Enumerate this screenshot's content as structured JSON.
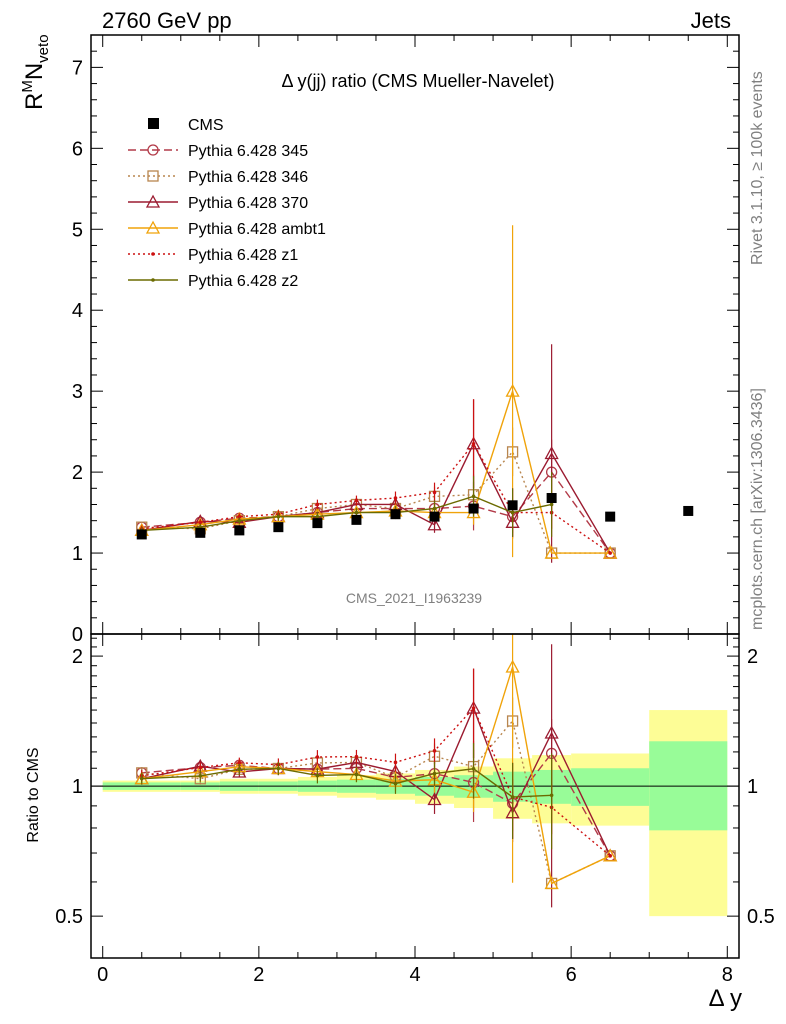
{
  "header": {
    "left": "2760 GeV pp",
    "right": "Jets"
  },
  "side_labels": {
    "rivet": "Rivet 3.1.10, ≥ 100k events",
    "mcplots": "mcplots.cern.ch [arXiv:1306.3436]"
  },
  "chart_data": {
    "type": "scatter",
    "title": "Δ y(jj) ratio (CMS Mueller-Navelet)",
    "analysis_label": "CMS_2021_I1963239",
    "xlabel": "Δ y",
    "ylabel_main_base": "R",
    "ylabel_main_sup": "M",
    "ylabel_main_N": "N",
    "ylabel_main_sub": "veto",
    "ylabel_ratio": "Ratio to CMS",
    "xlim": [
      -0.15,
      8.15
    ],
    "ylim_main": [
      0,
      7.4
    ],
    "ylim_ratio": [
      0.4,
      2.25
    ],
    "x_ticks": [
      "0",
      "2",
      "4",
      "6",
      "8"
    ],
    "y_ticks_main": [
      "0",
      "1",
      "2",
      "3",
      "4",
      "5",
      "6",
      "7"
    ],
    "y_ticks_ratio": [
      "0.5",
      "1",
      "2"
    ],
    "data": {
      "name": "CMS",
      "x": [
        0.5,
        1.25,
        1.75,
        2.25,
        2.75,
        3.25,
        3.75,
        4.25,
        4.75,
        5.25,
        5.75,
        6.5,
        7.5
      ],
      "y": [
        1.23,
        1.25,
        1.28,
        1.32,
        1.37,
        1.41,
        1.48,
        1.45,
        1.55,
        1.59,
        1.68,
        1.45,
        1.52
      ]
    },
    "uncertainty_bands": {
      "x_edges": [
        0,
        1,
        1.5,
        2,
        2.5,
        3,
        3.5,
        4,
        4.5,
        5,
        5.5,
        6,
        7,
        8
      ],
      "stat_low": [
        0.98,
        0.98,
        0.975,
        0.975,
        0.97,
        0.965,
        0.96,
        0.95,
        0.94,
        0.92,
        0.91,
        0.9,
        0.79
      ],
      "stat_high": [
        1.02,
        1.02,
        1.025,
        1.025,
        1.03,
        1.035,
        1.04,
        1.05,
        1.06,
        1.08,
        1.09,
        1.1,
        1.27
      ],
      "tot_low": [
        0.97,
        0.97,
        0.96,
        0.96,
        0.95,
        0.94,
        0.93,
        0.91,
        0.89,
        0.84,
        0.82,
        0.81,
        0.5
      ],
      "tot_high": [
        1.03,
        1.03,
        1.04,
        1.04,
        1.05,
        1.06,
        1.07,
        1.09,
        1.11,
        1.16,
        1.18,
        1.19,
        1.5
      ],
      "stat_color": "#98fc98",
      "tot_color": "#fdfd96"
    },
    "series": [
      {
        "name": "Pythia 6.428 345",
        "color": "#b23a48",
        "dash": "8,4",
        "marker": "circle",
        "x": [
          0.5,
          1.25,
          1.75,
          2.25,
          2.75,
          3.25,
          3.75,
          4.25,
          4.75,
          5.25,
          5.75,
          6.5
        ],
        "y": [
          1.32,
          1.38,
          1.43,
          1.45,
          1.5,
          1.55,
          1.55,
          1.55,
          1.58,
          1.45,
          2.0,
          1.0
        ],
        "err": [
          0.04,
          0.04,
          0.04,
          0.05,
          0.06,
          0.06,
          0.08,
          0.1,
          0.3,
          0.2,
          0.4,
          0.0
        ]
      },
      {
        "name": "Pythia 6.428 346",
        "color": "#b8864f",
        "dash": "2,3",
        "marker": "square",
        "x": [
          0.5,
          1.25,
          1.75,
          2.25,
          2.75,
          3.25,
          3.75,
          4.25,
          4.75,
          5.25,
          5.75,
          6.5
        ],
        "y": [
          1.32,
          1.3,
          1.4,
          1.45,
          1.55,
          1.6,
          1.55,
          1.7,
          1.72,
          2.25,
          1.0,
          1.0
        ],
        "err": [
          0.04,
          0.04,
          0.04,
          0.05,
          0.06,
          0.06,
          0.08,
          0.12,
          0.25,
          0.3,
          0.0,
          0.0
        ]
      },
      {
        "name": "Pythia 6.428 370",
        "color": "#9b1b30",
        "dash": "",
        "marker": "triangle",
        "x": [
          0.5,
          1.25,
          1.75,
          2.25,
          2.75,
          3.25,
          3.75,
          4.25,
          4.75,
          5.25,
          5.75,
          6.5
        ],
        "y": [
          1.28,
          1.39,
          1.38,
          1.45,
          1.5,
          1.6,
          1.6,
          1.35,
          2.35,
          1.38,
          2.23,
          1.0
        ],
        "err": [
          0.04,
          0.04,
          0.04,
          0.05,
          0.06,
          0.06,
          0.08,
          0.1,
          0.55,
          0.2,
          1.35,
          0.0
        ]
      },
      {
        "name": "Pythia 6.428 ambt1",
        "color": "#f0a30a",
        "dash": "",
        "marker": "triangle",
        "x": [
          0.5,
          1.25,
          1.75,
          2.25,
          2.75,
          3.25,
          3.75,
          4.25,
          4.75,
          5.25,
          5.75,
          6.5
        ],
        "y": [
          1.28,
          1.35,
          1.42,
          1.45,
          1.48,
          1.5,
          1.52,
          1.5,
          1.5,
          3.0,
          1.0,
          1.0
        ],
        "err": [
          0.04,
          0.04,
          0.04,
          0.05,
          0.06,
          0.06,
          0.08,
          0.1,
          0.15,
          2.05,
          0.0,
          0.0
        ]
      },
      {
        "name": "Pythia 6.428 z1",
        "color": "#cc1111",
        "dash": "2,3",
        "marker": "dot",
        "x": [
          0.5,
          1.25,
          1.75,
          2.25,
          2.75,
          3.25,
          3.75,
          4.25,
          4.75,
          5.25,
          5.75,
          6.5
        ],
        "y": [
          1.3,
          1.38,
          1.45,
          1.48,
          1.6,
          1.65,
          1.68,
          1.75,
          2.35,
          1.5,
          1.5,
          1.0
        ],
        "err": [
          0.04,
          0.04,
          0.04,
          0.05,
          0.06,
          0.06,
          0.08,
          0.12,
          0.55,
          0.3,
          0.2,
          0.0
        ]
      },
      {
        "name": "Pythia 6.428 z2",
        "color": "#6b6b00",
        "dash": "",
        "marker": "dot",
        "x": [
          0.5,
          1.25,
          1.75,
          2.25,
          2.75,
          3.25,
          3.75,
          4.25,
          4.75,
          5.25,
          5.75
        ],
        "y": [
          1.28,
          1.32,
          1.4,
          1.45,
          1.45,
          1.5,
          1.5,
          1.55,
          1.7,
          1.5,
          1.6
        ],
        "err": [
          0.04,
          0.04,
          0.04,
          0.05,
          0.06,
          0.06,
          0.08,
          0.1,
          0.25,
          0.3,
          0.4
        ]
      }
    ]
  }
}
